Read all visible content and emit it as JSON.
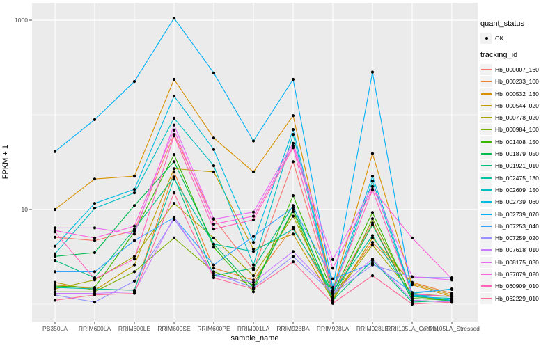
{
  "figure": {
    "x_axis": {
      "label": "sample_name"
    },
    "y_axis": {
      "label": "FPKM + 1"
    },
    "legend": {
      "quant_status_title": "quant_status",
      "quant_status_label": "OK",
      "tracking_title": "tracking_id"
    },
    "panel_background": "#EBEBEB",
    "gridline_color": "#FFFFFF",
    "tick_label_color": "#4D4D4D",
    "point_color": "#000000",
    "legend_key_background": "#F2F2F2"
  },
  "chart_data": {
    "type": "line",
    "title": "",
    "xlabel": "sample_name",
    "ylabel": "FPKM + 1",
    "y_scale": "log10",
    "ylim": [
      0.7,
      1500
    ],
    "y_tick_values": [
      10,
      1000
    ],
    "y_tick_labels": [
      "10",
      "1000"
    ],
    "y_gridline_values": [
      1,
      10,
      100,
      1000
    ],
    "grid": "on",
    "legend_position": "right",
    "point_legend": {
      "title": "quant_status",
      "label": "OK",
      "marker": "filled-black-circle"
    },
    "x_categories": [
      "PB350LA",
      "RRIM600LA",
      "RRIM600LE",
      "RRIM600SE",
      "RRIM600PE",
      "RRIM901LA",
      "RRIM928BA",
      "RRIM928LA",
      "RRIM928LE",
      "RRII105LA_Control",
      "RRII105LA_Stressed"
    ],
    "series": [
      {
        "name": "Hb_000007_160",
        "color": "#F8766D",
        "values": [
          5.1,
          4.7,
          6.0,
          62,
          8.0,
          2.3,
          32,
          1.3,
          7.2,
          1.1,
          1.05
        ]
      },
      {
        "name": "Hb_000233_100",
        "color": "#EA8331",
        "values": [
          1.6,
          1.45,
          1.4,
          25,
          2.4,
          1.8,
          6.5,
          1.2,
          4.5,
          1.7,
          1.3
        ]
      },
      {
        "name": "Hb_000532_130",
        "color": "#D89000",
        "values": [
          10,
          21,
          22.5,
          237,
          57,
          25,
          98,
          1.4,
          39,
          1.6,
          1.2
        ]
      },
      {
        "name": "Hb_000544_020",
        "color": "#C09B00",
        "values": [
          1.7,
          1.4,
          2.6,
          27,
          25,
          3.8,
          5.5,
          1.1,
          5.0,
          1.65,
          1.25
        ]
      },
      {
        "name": "Hb_000778_020",
        "color": "#A3A500",
        "values": [
          1.45,
          1.8,
          3.2,
          11.6,
          5.0,
          2.0,
          8.5,
          1.15,
          4.2,
          1.3,
          1.2
        ]
      },
      {
        "name": "Hb_000984_100",
        "color": "#7CAE00",
        "values": [
          1.35,
          1.35,
          2.2,
          5.0,
          2.2,
          1.6,
          9.5,
          1.05,
          8.0,
          1.2,
          1.1
        ]
      },
      {
        "name": "Hb_001408_150",
        "color": "#39B600",
        "values": [
          1.55,
          1.5,
          5.8,
          38,
          4.0,
          1.35,
          14,
          1.3,
          9.3,
          1.15,
          1.1
        ]
      },
      {
        "name": "Hb_001879_050",
        "color": "#00BB4E",
        "values": [
          3.2,
          3.5,
          11,
          32,
          4.3,
          1.5,
          10,
          1.2,
          6.9,
          1.1,
          1.05
        ]
      },
      {
        "name": "Hb_001921_010",
        "color": "#00BF7D",
        "values": [
          2.9,
          1.9,
          6.2,
          22,
          2.0,
          2.4,
          11,
          1.1,
          2.9,
          1.05,
          1.1
        ]
      },
      {
        "name": "Hb_002475_130",
        "color": "#00C1A3",
        "values": [
          1.5,
          1.45,
          1.4,
          21,
          4.3,
          3.6,
          6.2,
          1.35,
          5.3,
          1.2,
          1.15
        ]
      },
      {
        "name": "Hb_002609_150",
        "color": "#00BFC4",
        "values": [
          3.4,
          10.3,
          15,
          92,
          29,
          2.6,
          62,
          1.3,
          20,
          1.25,
          1.2
        ]
      },
      {
        "name": "Hb_002739_060",
        "color": "#00BAE0",
        "values": [
          4.1,
          11.6,
          16.3,
          158,
          43,
          4.5,
          70,
          1.4,
          22.5,
          1.3,
          1.45
        ]
      },
      {
        "name": "Hb_002739_070",
        "color": "#00B0F6",
        "values": [
          41,
          89,
          225,
          1050,
          277,
          53,
          237,
          1.5,
          283,
          1.25,
          1.1
        ]
      },
      {
        "name": "Hb_007253_040",
        "color": "#35A2FF",
        "values": [
          2.2,
          2.2,
          4.7,
          8.2,
          2.6,
          5.2,
          10.5,
          1.85,
          2.7,
          1.33,
          1.43
        ]
      },
      {
        "name": "Hb_007259_020",
        "color": "#9590FF",
        "values": [
          1.25,
          1.05,
          1.75,
          7.9,
          2.1,
          1.5,
          3.2,
          1.28,
          2.6,
          1.93,
          1.9
        ]
      },
      {
        "name": "Hb_007618_010",
        "color": "#C77CFF",
        "values": [
          1.3,
          1.3,
          1.35,
          8.3,
          2.0,
          1.7,
          3.6,
          1.32,
          3.0,
          1.1,
          1.05
        ]
      },
      {
        "name": "Hb_008175_030",
        "color": "#E76BF3",
        "values": [
          6.4,
          6.4,
          5.5,
          78,
          7.9,
          9.4,
          50,
          2.96,
          17.5,
          1.95,
          1.8
        ]
      },
      {
        "name": "Hb_057079_020",
        "color": "#FA62DB",
        "values": [
          6.0,
          5.0,
          6.7,
          69,
          7.0,
          8.5,
          47,
          2.4,
          16.4,
          5.0,
          1.85
        ]
      },
      {
        "name": "Hb_060909_010",
        "color": "#FF62BC",
        "values": [
          5.8,
          1.85,
          3.0,
          60,
          6.2,
          7.8,
          45,
          1.38,
          16,
          1.28,
          1.2
        ]
      },
      {
        "name": "Hb_062229_010",
        "color": "#FF6A98",
        "values": [
          1.1,
          1.25,
          1.3,
          15,
          1.9,
          1.45,
          2.8,
          1.02,
          2.0,
          1.0,
          1.05
        ]
      }
    ]
  }
}
